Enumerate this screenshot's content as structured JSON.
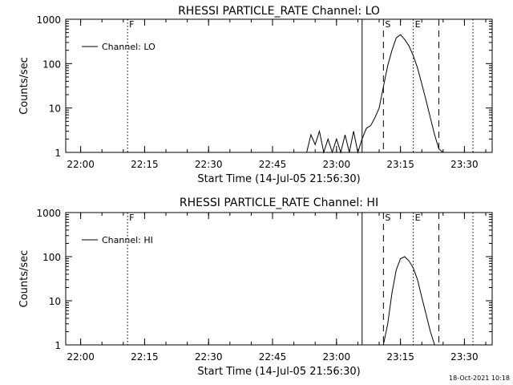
{
  "timestamp": "18-Oct-2021 10:18",
  "chart_data": [
    {
      "type": "line",
      "title": "RHESSI PARTICLE_RATE Channel: LO",
      "xlabel": "Start Time (14-Jul-05 21:56:30)",
      "ylabel": "Counts/sec",
      "y_scale": "log",
      "ylim": [
        1,
        1000
      ],
      "xlim_minutes_after_start": [
        0,
        100
      ],
      "x_ticks": [
        "22:00",
        "22:15",
        "22:30",
        "22:45",
        "23:00",
        "23:15",
        "23:30"
      ],
      "y_ticks": [
        "1",
        "10",
        "100",
        "1000"
      ],
      "legend": {
        "position": "top-left",
        "entries": [
          "Channel: LO"
        ]
      },
      "markers": [
        {
          "label": "F",
          "time": "22:11",
          "style": "dotted"
        },
        {
          "label": "",
          "time": "23:06",
          "style": "solid"
        },
        {
          "label": "S",
          "time": "23:11",
          "style": "dashed"
        },
        {
          "label": "E",
          "time": "23:18",
          "style": "dotted"
        },
        {
          "label": "",
          "time": "23:24",
          "style": "dashed"
        },
        {
          "label": "",
          "time": "23:32",
          "style": "dotted"
        }
      ],
      "series": [
        {
          "name": "Channel: LO",
          "x": [
            "22:53",
            "22:54",
            "22:55",
            "22:56",
            "22:57",
            "22:58",
            "22:59",
            "23:00",
            "23:01",
            "23:02",
            "23:03",
            "23:04",
            "23:05",
            "23:06",
            "23:07",
            "23:08",
            "23:09",
            "23:10",
            "23:11",
            "23:12",
            "23:13",
            "23:14",
            "23:15",
            "23:16",
            "23:17",
            "23:18",
            "23:19",
            "23:20",
            "23:21",
            "23:22",
            "23:23",
            "23:24",
            "23:25"
          ],
          "values": [
            1,
            2.5,
            1.5,
            3,
            1,
            2,
            1,
            2,
            1,
            2.5,
            1,
            3,
            1,
            2,
            3.5,
            4,
            6,
            10,
            30,
            90,
            200,
            380,
            450,
            350,
            250,
            150,
            80,
            35,
            15,
            6,
            2.5,
            1.2,
            1
          ]
        }
      ]
    },
    {
      "type": "line",
      "title": "RHESSI PARTICLE_RATE Channel: HI",
      "xlabel": "Start Time (14-Jul-05 21:56:30)",
      "ylabel": "Counts/sec",
      "y_scale": "log",
      "ylim": [
        1,
        1000
      ],
      "xlim_minutes_after_start": [
        0,
        100
      ],
      "x_ticks": [
        "22:00",
        "22:15",
        "22:30",
        "22:45",
        "23:00",
        "23:15",
        "23:30"
      ],
      "y_ticks": [
        "1",
        "10",
        "100",
        "1000"
      ],
      "legend": {
        "position": "top-left",
        "entries": [
          "Channel: HI"
        ]
      },
      "markers": [
        {
          "label": "F",
          "time": "22:11",
          "style": "dotted"
        },
        {
          "label": "",
          "time": "23:06",
          "style": "solid"
        },
        {
          "label": "S",
          "time": "23:11",
          "style": "dashed"
        },
        {
          "label": "E",
          "time": "23:18",
          "style": "dotted"
        },
        {
          "label": "",
          "time": "23:24",
          "style": "dashed"
        },
        {
          "label": "",
          "time": "23:32",
          "style": "dotted"
        }
      ],
      "series": [
        {
          "name": "Channel: HI",
          "x": [
            "23:11",
            "23:12",
            "23:13",
            "23:14",
            "23:15",
            "23:16",
            "23:17",
            "23:18",
            "23:19",
            "23:20",
            "23:21",
            "23:22",
            "23:23"
          ],
          "values": [
            1,
            3,
            15,
            50,
            90,
            100,
            80,
            55,
            30,
            12,
            5,
            2,
            1
          ]
        }
      ]
    }
  ]
}
